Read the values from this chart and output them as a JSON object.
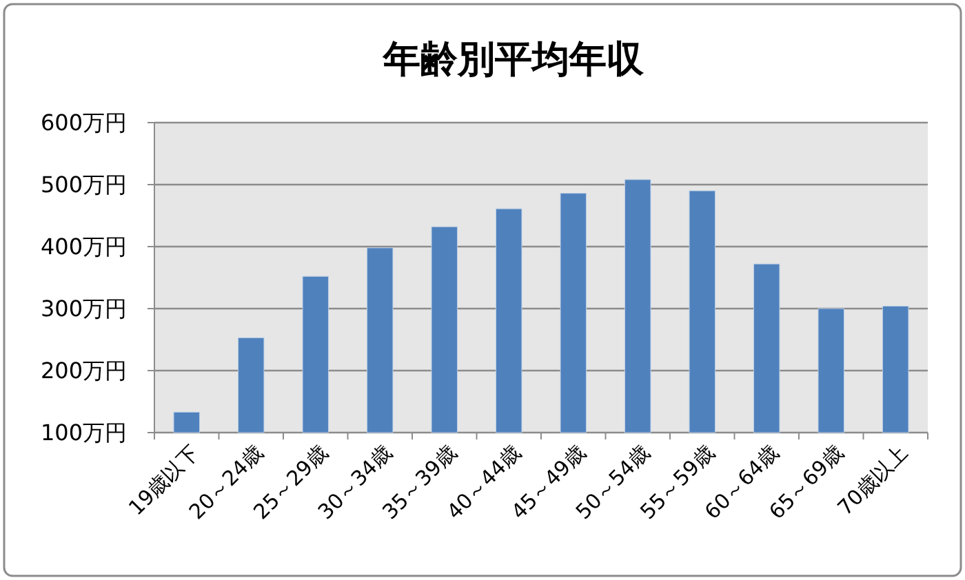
{
  "chart_data": {
    "type": "bar",
    "title": "年齢別平均年収",
    "categories": [
      "19歳以下",
      "20～24歳",
      "25～29歳",
      "30～34歳",
      "35～39歳",
      "40～44歳",
      "45～49歳",
      "50～54歳",
      "55～59歳",
      "60～64歳",
      "65～69歳",
      "70歳以上"
    ],
    "values": [
      133,
      253,
      352,
      398,
      432,
      461,
      486,
      508,
      490,
      372,
      300,
      304
    ],
    "color": "#4f81bd",
    "ylim": [
      100,
      600
    ],
    "yticks": [
      {
        "value": 100,
        "label": "100万円"
      },
      {
        "value": 200,
        "label": "200万円"
      },
      {
        "value": 300,
        "label": "300万円"
      },
      {
        "value": 400,
        "label": "400万円"
      },
      {
        "value": 500,
        "label": "500万円"
      },
      {
        "value": 600,
        "label": "600万円"
      }
    ],
    "grid": "y"
  }
}
